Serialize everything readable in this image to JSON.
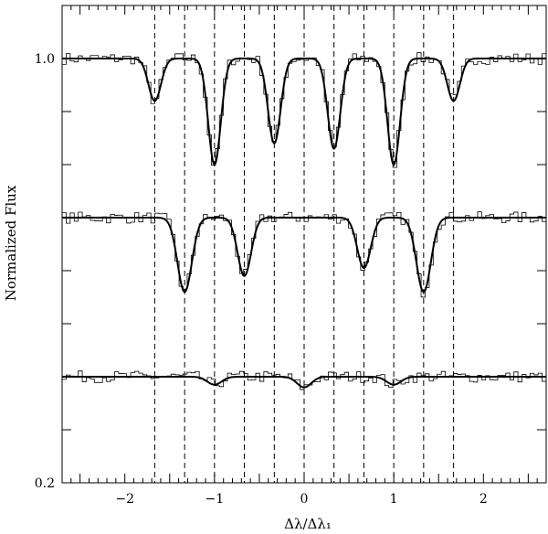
{
  "chart_data": {
    "type": "line",
    "title": "",
    "xlabel": "Δλ/Δλ₁",
    "ylabel": "Normalized Flux",
    "xlim": [
      -2.7,
      2.7
    ],
    "ylim": [
      0.2,
      1.1
    ],
    "x_ticks_major": [
      -2,
      -1,
      0,
      1,
      2
    ],
    "x_tick_labels": [
      "−2",
      "−1",
      "0",
      "1",
      "2"
    ],
    "y_tick_labels": [
      {
        "value": 1.0,
        "label": "1.0"
      },
      {
        "value": 0.2,
        "label": "0.2"
      }
    ],
    "y_ticks_unlabeled": [
      0.9,
      0.8,
      0.7,
      0.6,
      0.5,
      0.4,
      0.3
    ],
    "grid": false,
    "reference_lines": [
      -1.667,
      -1.333,
      -1.0,
      -0.667,
      -0.333,
      0.0,
      0.333,
      0.667,
      1.0,
      1.333,
      1.667
    ],
    "series": [
      {
        "baseline": 1.0,
        "lines": [
          {
            "x": -1.667,
            "depth": 0.08,
            "width": 0.07
          },
          {
            "x": -1.0,
            "depth": 0.2,
            "width": 0.07
          },
          {
            "x": -0.333,
            "depth": 0.16,
            "width": 0.07
          },
          {
            "x": 0.333,
            "depth": 0.17,
            "width": 0.07
          },
          {
            "x": 1.0,
            "depth": 0.2,
            "width": 0.07
          },
          {
            "x": 1.667,
            "depth": 0.08,
            "width": 0.07
          }
        ]
      },
      {
        "baseline": 0.7,
        "lines": [
          {
            "x": -1.333,
            "depth": 0.14,
            "width": 0.08
          },
          {
            "x": -0.667,
            "depth": 0.11,
            "width": 0.075
          },
          {
            "x": 0.667,
            "depth": 0.095,
            "width": 0.075
          },
          {
            "x": 1.333,
            "depth": 0.14,
            "width": 0.08
          }
        ]
      },
      {
        "baseline": 0.4,
        "lines": [
          {
            "x": -1.0,
            "depth": 0.015,
            "width": 0.08
          },
          {
            "x": 0.0,
            "depth": 0.02,
            "width": 0.08
          },
          {
            "x": 1.0,
            "depth": 0.015,
            "width": 0.08
          }
        ]
      }
    ]
  }
}
